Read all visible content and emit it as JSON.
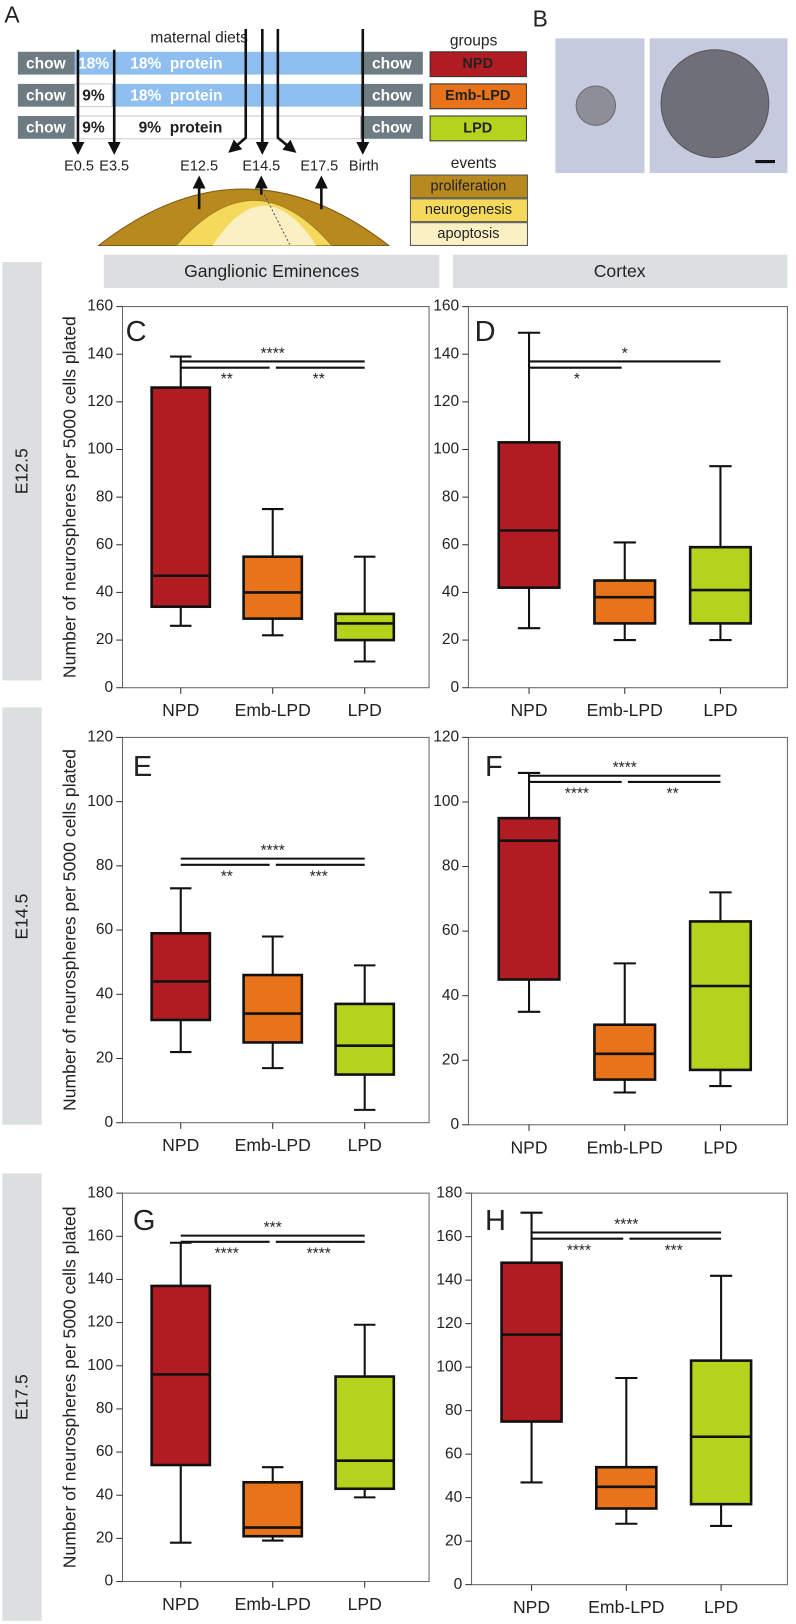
{
  "panel_a": {
    "label": "A",
    "title": "maternal diets",
    "diet_rows": [
      [
        "chow",
        "18%",
        "18%  protein",
        "chow"
      ],
      [
        "chow",
        "9%",
        "18%  protein",
        "chow"
      ],
      [
        "chow",
        "9%",
        "9%  protein",
        "chow"
      ]
    ],
    "timepoints": [
      "E0.5",
      "E3.5",
      "E12.5",
      "E14.5",
      "E17.5",
      "Birth"
    ],
    "groups_title": "groups",
    "groups": [
      {
        "name": "NPD",
        "color": "#b01c22"
      },
      {
        "name": "Emb-LPD",
        "color": "#e8731a"
      },
      {
        "name": "LPD",
        "color": "#b5d31c"
      }
    ],
    "events_title": "events",
    "events": [
      {
        "name": "proliferation",
        "color": "#b8891e"
      },
      {
        "name": "neurogenesis",
        "color": "#f4d95a"
      },
      {
        "name": "apoptosis",
        "color": "#fbf0c4"
      }
    ]
  },
  "panel_b": {
    "label": "B"
  },
  "column_headers": [
    "Ganglionic Eminences",
    "Cortex"
  ],
  "row_labels": [
    "E12.5",
    "E14.5",
    "E17.5"
  ],
  "chart_data": [
    {
      "type": "box",
      "panel": "C",
      "y_label": "Number of neurospheres per 5000 cells plated",
      "categories": [
        "NPD",
        "Emb-LPD",
        "LPD"
      ],
      "colors": [
        "#b01c22",
        "#e8731a",
        "#b5d31c"
      ],
      "boxes": [
        {
          "min": 26,
          "q1": 34,
          "median": 47,
          "q3": 126,
          "max": 139
        },
        {
          "min": 22,
          "q1": 29,
          "median": 40,
          "q3": 55,
          "max": 75
        },
        {
          "min": 11,
          "q1": 20,
          "median": 27,
          "q3": 31,
          "max": 55
        }
      ],
      "ylim": [
        0,
        160
      ],
      "yticks": [
        0,
        20,
        40,
        60,
        80,
        100,
        120,
        140,
        160
      ],
      "significance": [
        {
          "label": "****",
          "span": [
            0,
            2
          ]
        },
        {
          "label": "**",
          "span": [
            0,
            1
          ]
        },
        {
          "label": "**",
          "span": [
            1,
            2
          ]
        }
      ]
    },
    {
      "type": "box",
      "panel": "D",
      "categories": [
        "NPD",
        "Emb-LPD",
        "LPD"
      ],
      "colors": [
        "#b01c22",
        "#e8731a",
        "#b5d31c"
      ],
      "boxes": [
        {
          "min": 25,
          "q1": 42,
          "median": 66,
          "q3": 103,
          "max": 149
        },
        {
          "min": 20,
          "q1": 27,
          "median": 38,
          "q3": 45,
          "max": 61
        },
        {
          "min": 20,
          "q1": 27,
          "median": 41,
          "q3": 59,
          "max": 93
        }
      ],
      "ylim": [
        0,
        160
      ],
      "yticks": [
        0,
        20,
        40,
        60,
        80,
        100,
        120,
        140,
        160
      ],
      "significance": [
        {
          "label": "*",
          "span": [
            0,
            2
          ]
        },
        {
          "label": "*",
          "span": [
            0,
            1
          ]
        }
      ]
    },
    {
      "type": "box",
      "panel": "E",
      "y_label": "Number of neurospheres per 5000 cells plated",
      "categories": [
        "NPD",
        "Emb-LPD",
        "LPD"
      ],
      "colors": [
        "#b01c22",
        "#e8731a",
        "#b5d31c"
      ],
      "boxes": [
        {
          "min": 22,
          "q1": 32,
          "median": 44,
          "q3": 59,
          "max": 73
        },
        {
          "min": 17,
          "q1": 25,
          "median": 34,
          "q3": 46,
          "max": 58
        },
        {
          "min": 4,
          "q1": 15,
          "median": 24,
          "q3": 37,
          "max": 49
        }
      ],
      "ylim": [
        0,
        120
      ],
      "yticks": [
        0,
        20,
        40,
        60,
        80,
        100,
        120
      ],
      "significance": [
        {
          "label": "****",
          "span": [
            0,
            2
          ]
        },
        {
          "label": "**",
          "span": [
            0,
            1
          ]
        },
        {
          "label": "***",
          "span": [
            1,
            2
          ]
        }
      ]
    },
    {
      "type": "box",
      "panel": "F",
      "categories": [
        "NPD",
        "Emb-LPD",
        "LPD"
      ],
      "colors": [
        "#b01c22",
        "#e8731a",
        "#b5d31c"
      ],
      "boxes": [
        {
          "min": 35,
          "q1": 45,
          "median": 88,
          "q3": 95,
          "max": 109
        },
        {
          "min": 10,
          "q1": 14,
          "median": 22,
          "q3": 31,
          "max": 50
        },
        {
          "min": 12,
          "q1": 17,
          "median": 43,
          "q3": 63,
          "max": 72
        }
      ],
      "ylim": [
        0,
        120
      ],
      "yticks": [
        0,
        20,
        40,
        60,
        80,
        100,
        120
      ],
      "significance": [
        {
          "label": "****",
          "span": [
            0,
            2
          ]
        },
        {
          "label": "****",
          "span": [
            0,
            1
          ]
        },
        {
          "label": "**",
          "span": [
            1,
            2
          ]
        }
      ]
    },
    {
      "type": "box",
      "panel": "G",
      "y_label": "Number of neurospheres per 5000 cells plated",
      "categories": [
        "NPD",
        "Emb-LPD",
        "LPD"
      ],
      "colors": [
        "#b01c22",
        "#e8731a",
        "#b5d31c"
      ],
      "boxes": [
        {
          "min": 18,
          "q1": 54,
          "median": 96,
          "q3": 137,
          "max": 157
        },
        {
          "min": 19,
          "q1": 21,
          "median": 25,
          "q3": 46,
          "max": 53
        },
        {
          "min": 39,
          "q1": 43,
          "median": 56,
          "q3": 95,
          "max": 119
        }
      ],
      "ylim": [
        0,
        180
      ],
      "yticks": [
        0,
        20,
        40,
        60,
        80,
        100,
        120,
        140,
        160,
        180
      ],
      "significance": [
        {
          "label": "***",
          "span": [
            0,
            2
          ]
        },
        {
          "label": "****",
          "span": [
            0,
            1
          ]
        },
        {
          "label": "****",
          "span": [
            1,
            2
          ]
        }
      ]
    },
    {
      "type": "box",
      "panel": "H",
      "categories": [
        "NPD",
        "Emb-LPD",
        "LPD"
      ],
      "colors": [
        "#b01c22",
        "#e8731a",
        "#b5d31c"
      ],
      "boxes": [
        {
          "min": 47,
          "q1": 75,
          "median": 115,
          "q3": 148,
          "max": 171
        },
        {
          "min": 28,
          "q1": 35,
          "median": 45,
          "q3": 54,
          "max": 95
        },
        {
          "min": 27,
          "q1": 37,
          "median": 68,
          "q3": 103,
          "max": 142
        }
      ],
      "ylim": [
        0,
        180
      ],
      "yticks": [
        0,
        20,
        40,
        60,
        80,
        100,
        120,
        140,
        160,
        180
      ],
      "significance": [
        {
          "label": "****",
          "span": [
            0,
            2
          ]
        },
        {
          "label": "****",
          "span": [
            0,
            1
          ]
        },
        {
          "label": "***",
          "span": [
            1,
            2
          ]
        }
      ]
    }
  ]
}
